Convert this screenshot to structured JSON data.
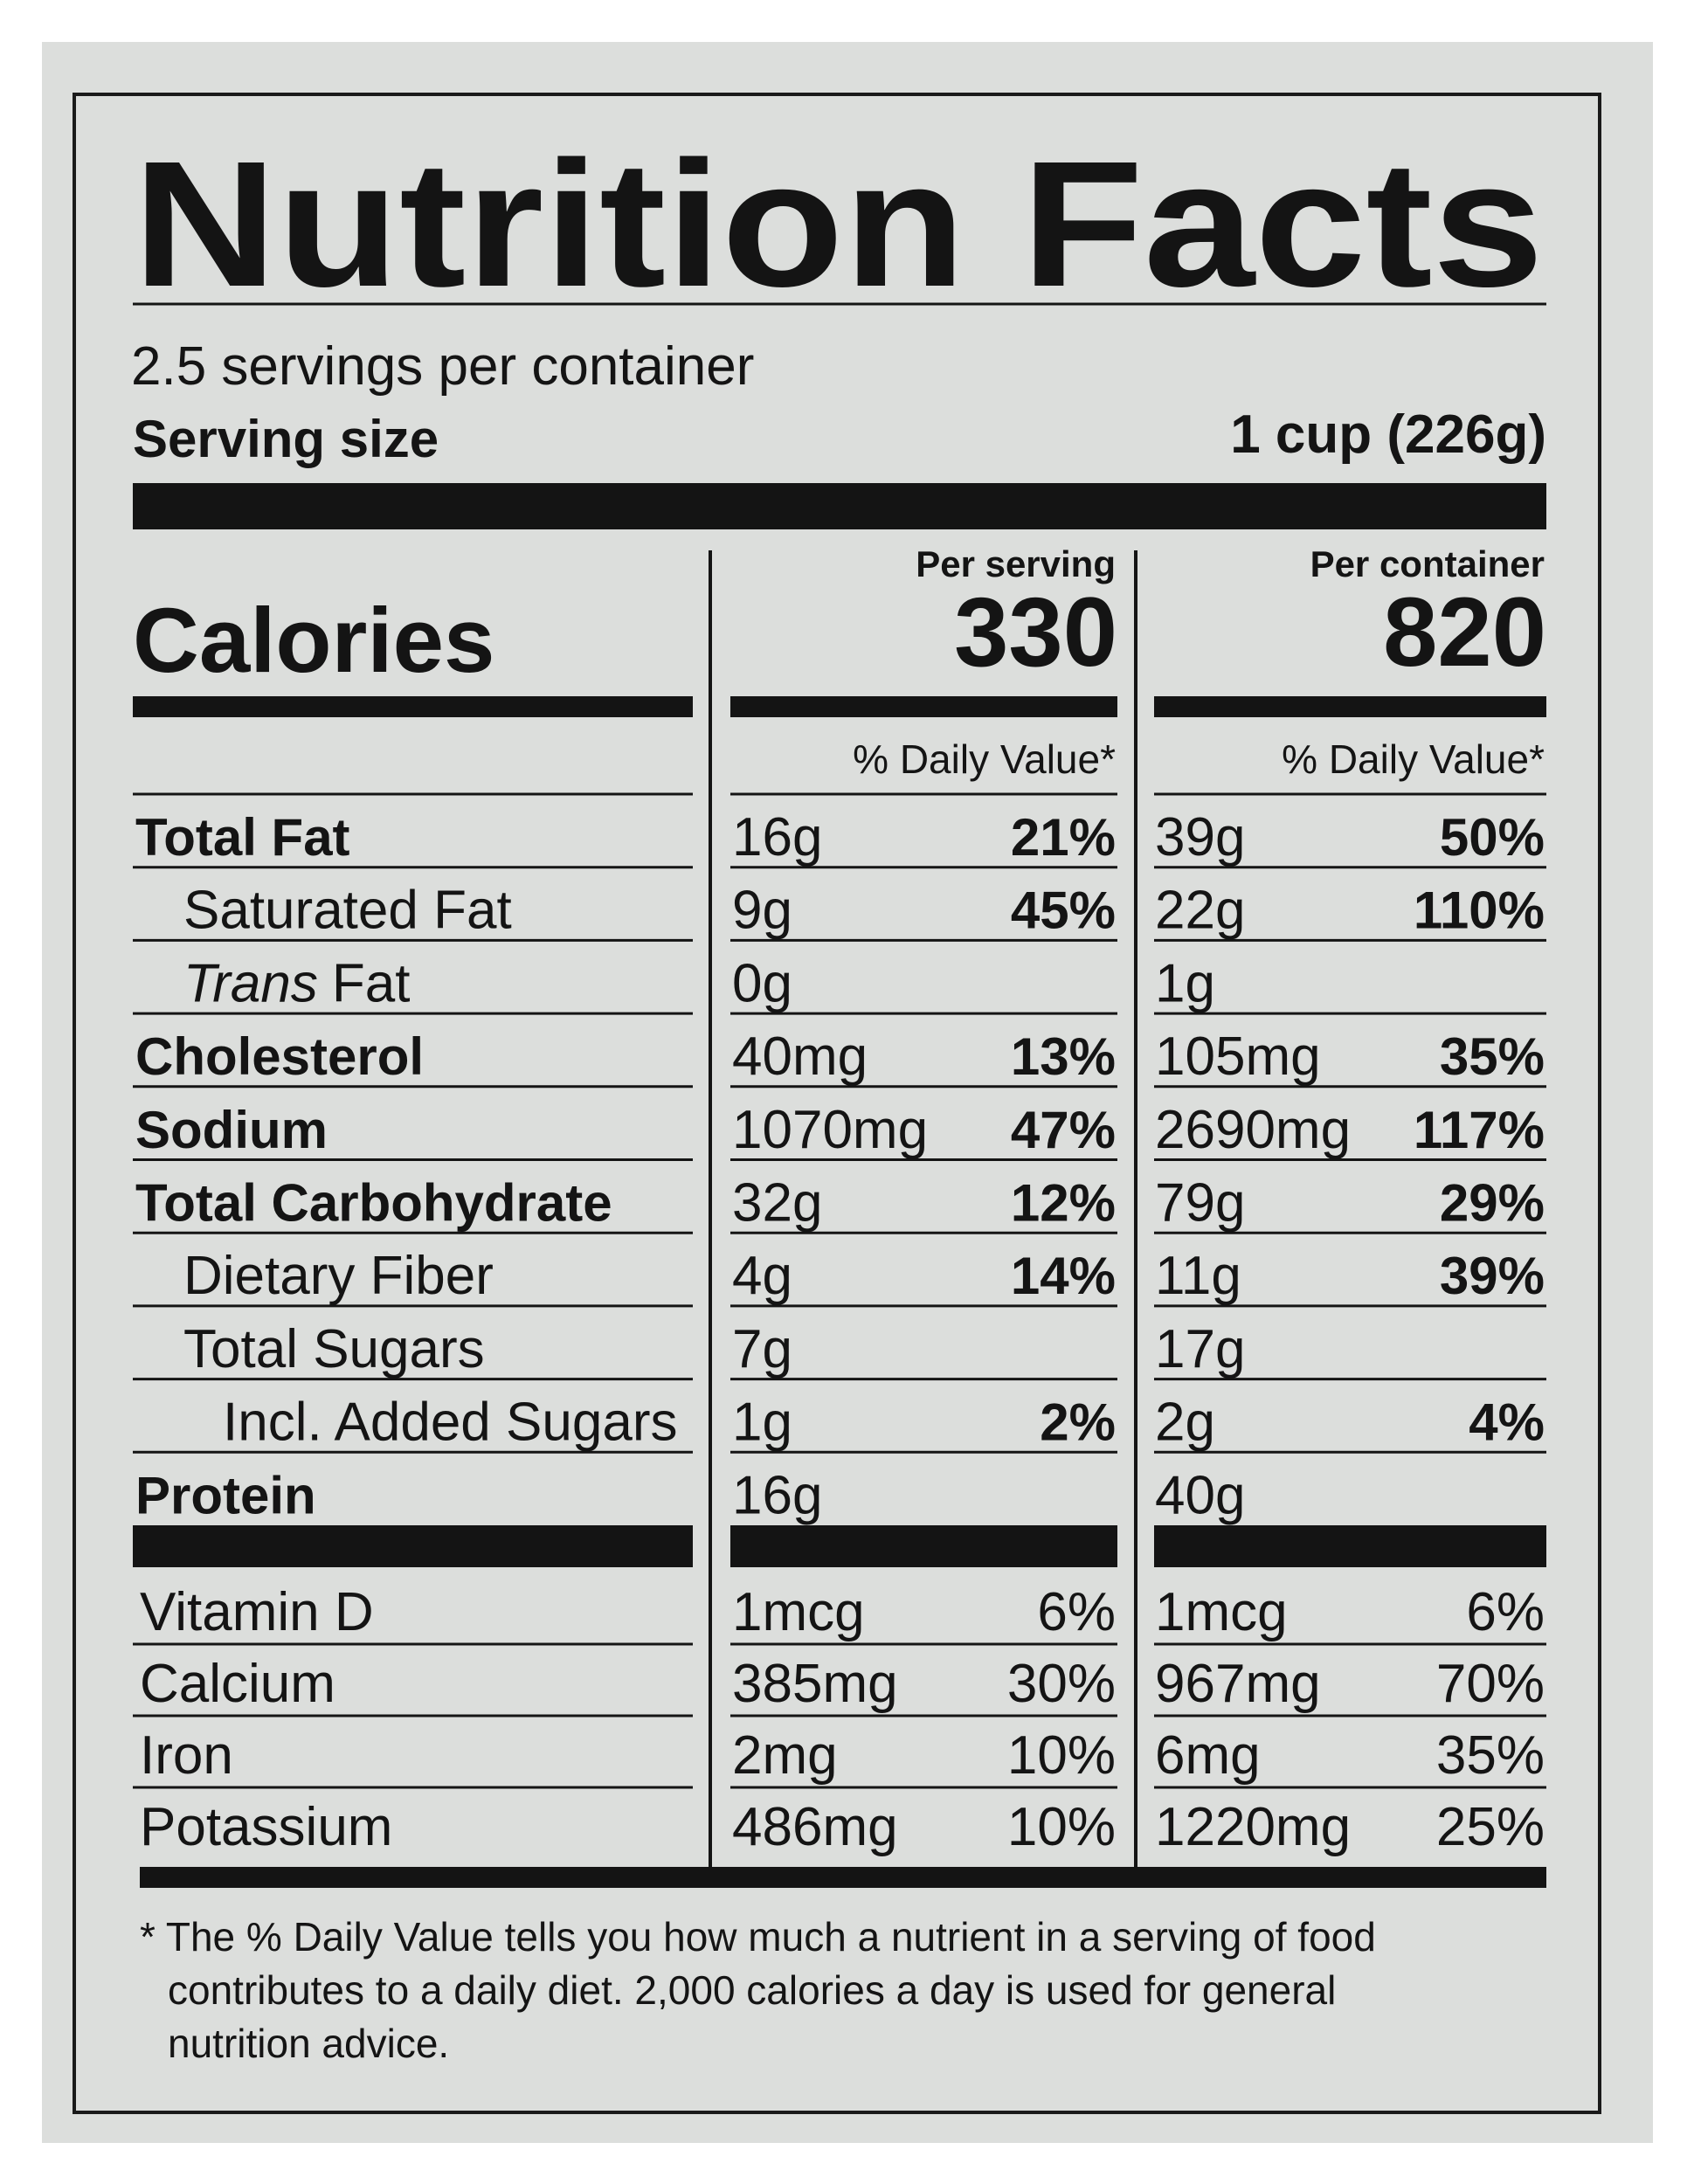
{
  "header": {
    "title": "Nutrition Facts",
    "servings": "2.5 servings per container",
    "serving_size_label": "Serving size",
    "serving_size_value": "1 cup (226g)"
  },
  "calories": {
    "label": "Calories",
    "columns": [
      {
        "heading": "Per serving",
        "calories": "330",
        "dv_heading": "% Daily Value*"
      },
      {
        "heading": "Per container",
        "calories": "820",
        "dv_heading": "% Daily Value*"
      }
    ]
  },
  "nutrients": [
    {
      "label": "Total Fat",
      "level": 0,
      "values": [
        [
          "16g",
          "21%"
        ],
        [
          "39g",
          "50%"
        ]
      ]
    },
    {
      "label": "Saturated Fat",
      "level": 1,
      "values": [
        [
          "9g",
          "45%"
        ],
        [
          "22g",
          "110%"
        ]
      ]
    },
    {
      "italic_prefix": "Trans",
      "label": "Fat",
      "level": 1,
      "values": [
        [
          "0g",
          null
        ],
        [
          "1g",
          null
        ]
      ]
    },
    {
      "label": "Cholesterol",
      "level": 0,
      "values": [
        [
          "40mg",
          "13%"
        ],
        [
          "105mg",
          "35%"
        ]
      ]
    },
    {
      "label": "Sodium",
      "level": 0,
      "values": [
        [
          "1070mg",
          "47%"
        ],
        [
          "2690mg",
          "117%"
        ]
      ]
    },
    {
      "label": "Total Carbohydrate",
      "level": 0,
      "values": [
        [
          "32g",
          "12%"
        ],
        [
          "79g",
          "29%"
        ]
      ]
    },
    {
      "label": "Dietary Fiber",
      "level": 1,
      "values": [
        [
          "4g",
          "14%"
        ],
        [
          "11g",
          "39%"
        ]
      ]
    },
    {
      "label": "Total Sugars",
      "level": 1,
      "values": [
        [
          "7g",
          null
        ],
        [
          "17g",
          null
        ]
      ]
    },
    {
      "label": "Incl. Added Sugars",
      "level": 2,
      "values": [
        [
          "1g",
          "2%"
        ],
        [
          "2g",
          "4%"
        ]
      ]
    },
    {
      "label": "Protein",
      "level": 0,
      "values": [
        [
          "16g",
          null
        ],
        [
          "40g",
          null
        ]
      ]
    }
  ],
  "vitamins": [
    {
      "label": "Vitamin D",
      "values": [
        [
          "1mcg",
          "6%"
        ],
        [
          "1mcg",
          "6%"
        ]
      ]
    },
    {
      "label": "Calcium",
      "values": [
        [
          "385mg",
          "30%"
        ],
        [
          "967mg",
          "70%"
        ]
      ]
    },
    {
      "label": "Iron",
      "values": [
        [
          "2mg",
          "10%"
        ],
        [
          "6mg",
          "35%"
        ]
      ]
    },
    {
      "label": "Potassium",
      "values": [
        [
          "486mg",
          "10%"
        ],
        [
          "1220mg",
          "25%"
        ]
      ]
    }
  ],
  "footnote": [
    "* The % Daily Value tells you how much a nutrient in a serving of food",
    "contributes to a daily diet. 2,000 calories a day is used for general",
    "nutrition advice."
  ]
}
